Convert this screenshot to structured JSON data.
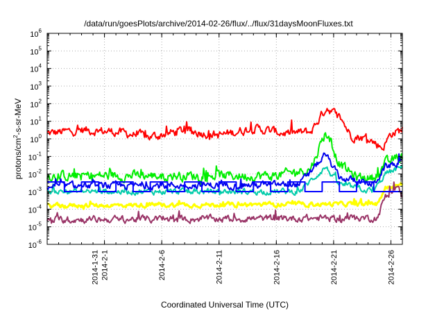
{
  "chart_data": {
    "type": "line",
    "title": "/data/run/goesPlots/archive/2014-02-26/flux/../flux/31daysMoonFluxes.txt",
    "xlabel": "Coordinated Universal Time (UTC)",
    "ylabel_parts": [
      "protons/cm",
      "2",
      "-s-sr-MeV"
    ],
    "yscale": "log",
    "ylim_exp": [
      -6,
      6
    ],
    "ytick_exponents": [
      -6,
      -5,
      -4,
      -3,
      -2,
      -1,
      0,
      1,
      2,
      3,
      4,
      5,
      6
    ],
    "xlim_days": [
      0,
      31
    ],
    "xticks": [
      {
        "day": 5,
        "labels": [
          "2014-1-31",
          "2014-2-1"
        ]
      },
      {
        "day": 10,
        "labels": [
          "2014-2-6"
        ]
      },
      {
        "day": 15,
        "labels": [
          "2014-2-11"
        ]
      },
      {
        "day": 20,
        "labels": [
          "2014-2-16"
        ]
      },
      {
        "day": 25,
        "labels": [
          "2014-2-21"
        ]
      },
      {
        "day": 30,
        "labels": [
          "2014-2-26"
        ]
      }
    ],
    "grid": true,
    "series": [
      {
        "color": "#ff0000",
        "base": 0.4,
        "amp": 0.45,
        "lw": 2,
        "profile": [
          [
            0,
            0.3
          ],
          [
            3,
            0.5
          ],
          [
            6,
            0.4
          ],
          [
            9,
            0.1
          ],
          [
            12,
            0.5
          ],
          [
            15,
            0.2
          ],
          [
            18,
            0.6
          ],
          [
            21,
            0.3
          ],
          [
            23,
            0.4
          ],
          [
            24.4,
            1.8
          ],
          [
            25.6,
            1.2
          ],
          [
            26.5,
            0.2
          ],
          [
            28,
            0.0
          ],
          [
            29.3,
            -0.5
          ],
          [
            30,
            0.3
          ],
          [
            31,
            0.5
          ]
        ]
      },
      {
        "color": "#00ee00",
        "base": -2.2,
        "amp": 0.5,
        "lw": 2,
        "profile": [
          [
            0,
            -2.1
          ],
          [
            20,
            -2.1
          ],
          [
            23,
            -1.7
          ],
          [
            24.3,
            0.4
          ],
          [
            25.5,
            -1.4
          ],
          [
            27,
            -2.2
          ],
          [
            28.5,
            -2.2
          ],
          [
            29.5,
            -1.4
          ],
          [
            31,
            -1.0
          ]
        ]
      },
      {
        "color": "#00ccaa",
        "base": -3.0,
        "amp": 0.3,
        "lw": 2,
        "profile": [
          [
            0,
            -3.0
          ],
          [
            22,
            -3.0
          ],
          [
            24.3,
            -1.6
          ],
          [
            25.5,
            -2.6
          ],
          [
            28.5,
            -3.0
          ],
          [
            29.5,
            -2.0
          ],
          [
            31,
            -1.6
          ]
        ]
      },
      {
        "color": "#0000ee",
        "base": -2.7,
        "amp": 0.35,
        "lw": 2,
        "profile": [
          [
            0,
            -2.7
          ],
          [
            22,
            -2.6
          ],
          [
            24.3,
            -0.9
          ],
          [
            25.5,
            -2.2
          ],
          [
            28.5,
            -2.6
          ],
          [
            29.5,
            -1.6
          ],
          [
            31,
            -1.3
          ]
        ]
      },
      {
        "color": "#ffff00",
        "base": -3.8,
        "amp": 0.22,
        "lw": 3,
        "profile": [
          [
            0,
            -3.8
          ],
          [
            28.8,
            -3.7
          ],
          [
            29.5,
            -2.8
          ],
          [
            31,
            -2.6
          ]
        ]
      },
      {
        "color": "#993366",
        "base": -4.6,
        "amp": 0.35,
        "lw": 2,
        "profile": [
          [
            0,
            -4.6
          ],
          [
            28.8,
            -4.5
          ],
          [
            29.5,
            -3.3
          ],
          [
            30.5,
            -2.7
          ],
          [
            31,
            -3.3
          ]
        ]
      },
      {
        "color": "#0000ff",
        "kind": "step",
        "lw": 2,
        "levels": [
          -2.45,
          -3.0
        ],
        "step_days": [
          0,
          1.5,
          3,
          4.5,
          6,
          7.5,
          9,
          10.5,
          12,
          13.5,
          15,
          16.5,
          18,
          19.5,
          21,
          22.5,
          24,
          25.5,
          27,
          28.5,
          31
        ]
      }
    ]
  }
}
